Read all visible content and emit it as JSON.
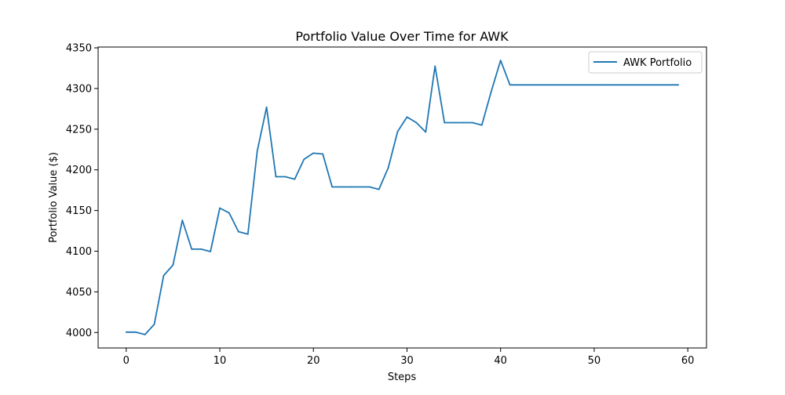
{
  "chart_data": {
    "type": "line",
    "title": "Portfolio Value Over Time for AWK",
    "xlabel": "Steps",
    "ylabel": "Portfolio Value ($)",
    "xlim": [
      -3,
      62
    ],
    "ylim": [
      3981,
      4351
    ],
    "x_ticks": [
      0,
      10,
      20,
      30,
      40,
      50,
      60
    ],
    "y_ticks": [
      4000,
      4050,
      4100,
      4150,
      4200,
      4250,
      4300,
      4350
    ],
    "grid": false,
    "legend": {
      "position": "top-right"
    },
    "series": [
      {
        "name": "AWK Portfolio",
        "color": "#1f77b4",
        "x": [
          0,
          1,
          2,
          3,
          4,
          5,
          6,
          7,
          8,
          9,
          10,
          11,
          12,
          13,
          14,
          15,
          16,
          17,
          18,
          19,
          20,
          21,
          22,
          23,
          24,
          25,
          26,
          27,
          28,
          29,
          30,
          31,
          32,
          33,
          34,
          35,
          36,
          37,
          38,
          39,
          40,
          41,
          42,
          43,
          44,
          45,
          46,
          47,
          48,
          49,
          50,
          51,
          52,
          53,
          54,
          55,
          56,
          57,
          58,
          59
        ],
        "values": [
          4000.5,
          4000.5,
          3997.5,
          4010,
          4070,
          4083,
          4138,
          4102.5,
          4102.5,
          4099.5,
          4153,
          4147,
          4124,
          4121,
          4223,
          4277,
          4191.5,
          4191.5,
          4188.5,
          4213,
          4220.5,
          4219.5,
          4179,
          4179,
          4179,
          4179,
          4179,
          4176,
          4202.5,
          4247,
          4265,
          4258,
          4246.5,
          4327.5,
          4258,
          4258,
          4258,
          4258,
          4255,
          4296.5,
          4334.5,
          4304.5,
          4304.5,
          4304.5,
          4304.5,
          4304.5,
          4304.5,
          4304.5,
          4304.5,
          4304.5,
          4304.5,
          4304.5,
          4304.5,
          4304.5,
          4304.5,
          4304.5,
          4304.5,
          4304.5,
          4304.5,
          4304.5
        ]
      }
    ]
  }
}
